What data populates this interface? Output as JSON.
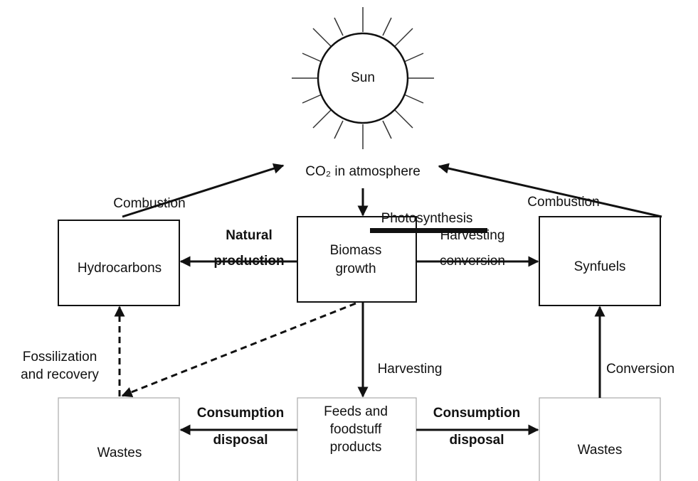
{
  "sun": "Sun",
  "atmosphere": "CO₂ in atmosphere",
  "nodes": [
    {
      "label": [
        "Hydrocarbons"
      ]
    },
    {
      "label": [
        "Biomass",
        "growth"
      ]
    },
    {
      "label": [
        "Synfuels"
      ]
    },
    {
      "label": [
        "Wastes"
      ]
    },
    {
      "label": [
        "Feeds and",
        "foodstuff",
        "products"
      ]
    },
    {
      "label": [
        "Wastes"
      ]
    }
  ],
  "edges": [
    {
      "label": [
        "Combustion"
      ]
    },
    {
      "label": [
        "Combustion"
      ]
    },
    {
      "label": [
        "Photosynthesis"
      ]
    },
    {
      "label": [
        "Natural",
        "production"
      ]
    },
    {
      "label": [
        "Harvesting",
        "conversion"
      ]
    },
    {
      "label": [
        "Fossilization",
        "and recovery"
      ]
    },
    {
      "label": [
        "Harvesting"
      ]
    },
    {
      "label": [
        "Conversion"
      ]
    },
    {
      "label": [
        "Consumption",
        "disposal"
      ]
    },
    {
      "label": [
        "Consumption",
        "disposal"
      ]
    }
  ]
}
